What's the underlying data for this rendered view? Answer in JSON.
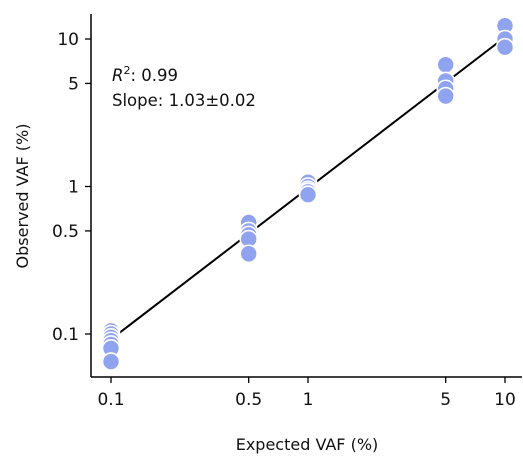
{
  "chart_data": {
    "type": "scatter",
    "xlabel": "Expected VAF (%)",
    "ylabel": "Observed VAF (%)",
    "xscale": "log",
    "yscale": "log",
    "xlim": [
      0.08,
      13
    ],
    "ylim": [
      0.06,
      15
    ],
    "xticks": [
      0.1,
      0.5,
      1,
      5,
      10
    ],
    "xtick_labels": [
      "0.1",
      "0.5",
      "1",
      "5",
      "10"
    ],
    "yticks": [
      0.1,
      0.5,
      1,
      5,
      10
    ],
    "ytick_labels": [
      "0.1",
      "0.5",
      "1",
      "5",
      "10"
    ],
    "grid": false,
    "points": [
      {
        "x": 0.1,
        "y": 0.105
      },
      {
        "x": 0.1,
        "y": 0.1
      },
      {
        "x": 0.1,
        "y": 0.095
      },
      {
        "x": 0.1,
        "y": 0.09
      },
      {
        "x": 0.1,
        "y": 0.085
      },
      {
        "x": 0.1,
        "y": 0.08
      },
      {
        "x": 0.1,
        "y": 0.065
      },
      {
        "x": 0.5,
        "y": 0.57
      },
      {
        "x": 0.5,
        "y": 0.5
      },
      {
        "x": 0.5,
        "y": 0.47
      },
      {
        "x": 0.5,
        "y": 0.44
      },
      {
        "x": 0.5,
        "y": 0.35
      },
      {
        "x": 1,
        "y": 1.07
      },
      {
        "x": 1,
        "y": 1.0
      },
      {
        "x": 1,
        "y": 0.95
      },
      {
        "x": 1,
        "y": 0.92
      },
      {
        "x": 1,
        "y": 0.88
      },
      {
        "x": 5,
        "y": 6.7
      },
      {
        "x": 5,
        "y": 5.2
      },
      {
        "x": 5,
        "y": 4.6
      },
      {
        "x": 5,
        "y": 4.1
      },
      {
        "x": 10,
        "y": 12.3
      },
      {
        "x": 10,
        "y": 10.0
      },
      {
        "x": 10,
        "y": 8.8
      }
    ],
    "fit_line": {
      "x": [
        0.1,
        10
      ],
      "y": [
        0.092,
        10.3
      ]
    },
    "marker_color": "#8FA3EE",
    "marker_edge_color": "#ffffff",
    "line_color": "#000000",
    "annotation": {
      "r2_symbol": "R",
      "r2_superscript": "2",
      "r2_value": ": 0.99",
      "slope_text": "Slope: 1.03±0.02",
      "placement": "top-left"
    }
  }
}
